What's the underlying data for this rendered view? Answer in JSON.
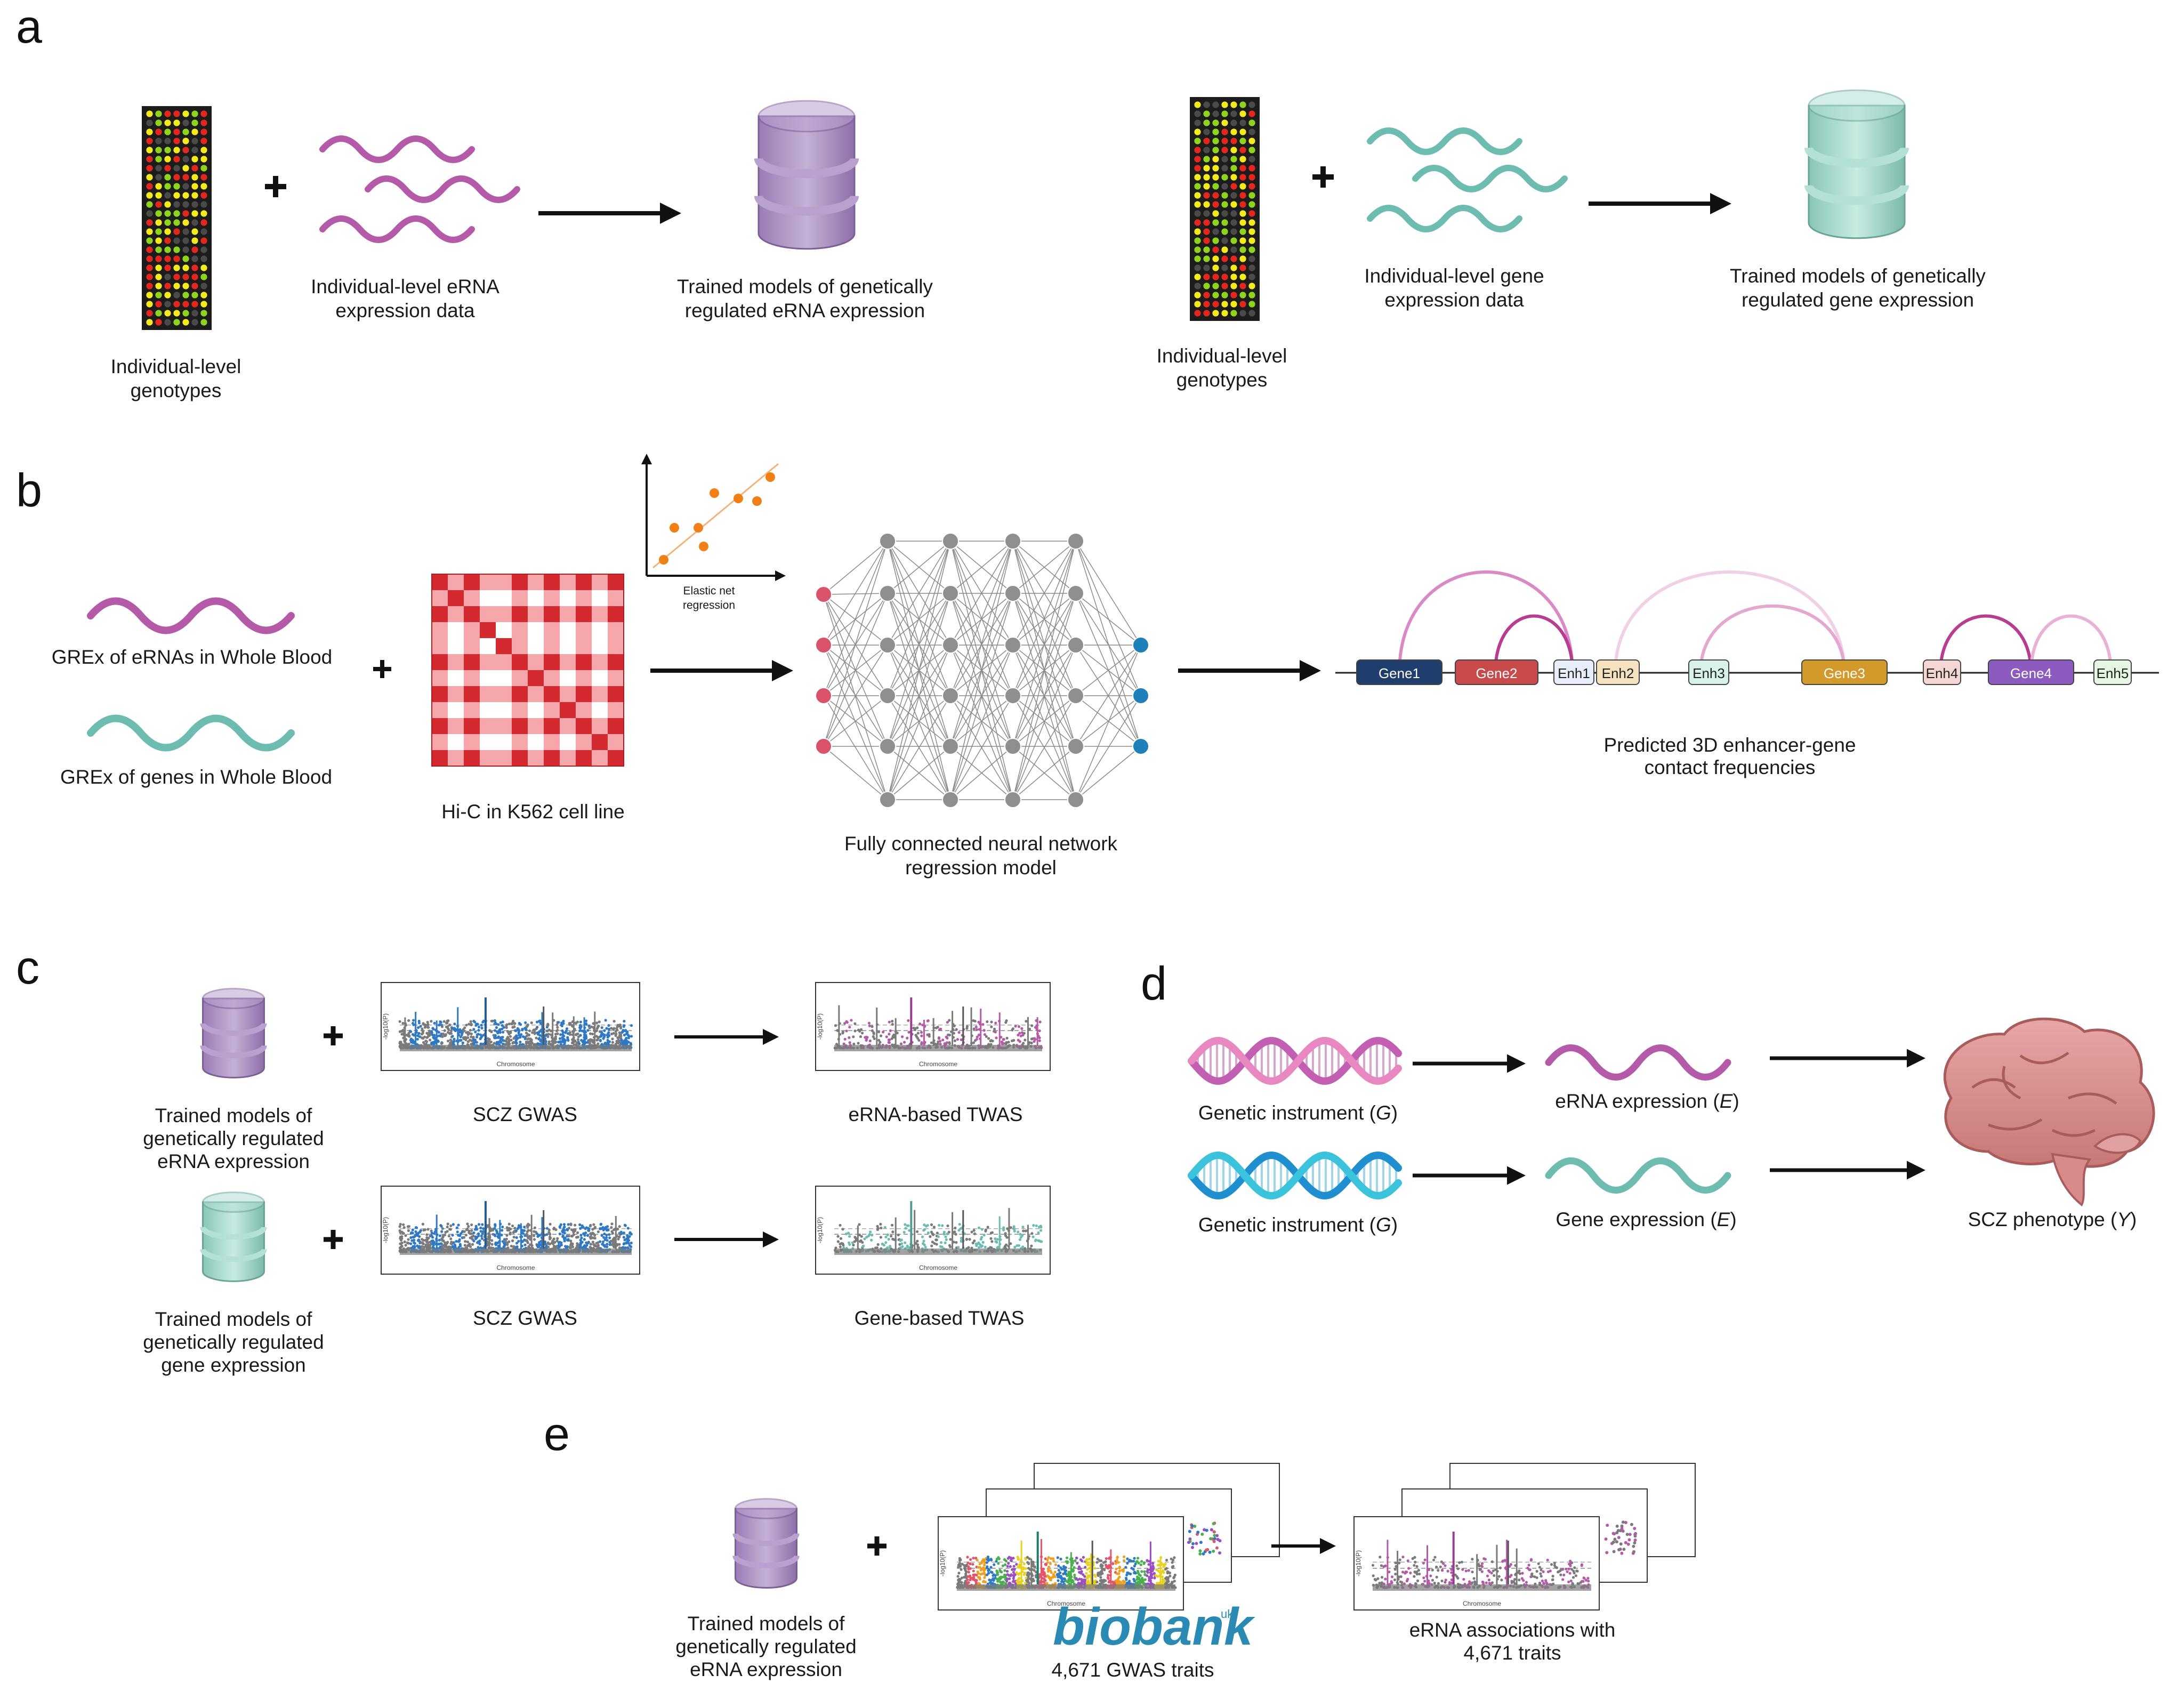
{
  "panels": {
    "a": "a",
    "b": "b",
    "c": "c",
    "d": "d",
    "e": "e"
  },
  "panel_a": {
    "genotypes_left": [
      "Individual-level",
      "genotypes"
    ],
    "erna_data": [
      "Individual-level eRNA",
      "expression data"
    ],
    "erna_models": [
      "Trained models of genetically",
      "regulated eRNA expression"
    ],
    "genotypes_right": [
      "Individual-level",
      "genotypes"
    ],
    "gene_data": [
      "Individual-level gene",
      "expression data"
    ],
    "gene_models": [
      "Trained models of genetically",
      "regulated gene expression"
    ]
  },
  "panel_b": {
    "grex_erna": "GREx of eRNAs in Whole Blood",
    "grex_gene": "GREx of genes in Whole Blood",
    "hic": "Hi-C in K562 cell line",
    "elastic": [
      "Elastic net",
      "regression"
    ],
    "nn": [
      "Fully connected neural network",
      "regression model"
    ],
    "contacts": [
      "Predicted 3D enhancer-gene",
      "contact frequencies"
    ],
    "elements": [
      "Gene1",
      "Gene2",
      "Enh1",
      "Enh2",
      "Enh3",
      "Gene3",
      "Enh4",
      "Gene4",
      "Enh5"
    ]
  },
  "panel_c": {
    "erna_models": [
      "Trained models of",
      "genetically regulated",
      "eRNA expression"
    ],
    "gene_models": [
      "Trained models of",
      "genetically regulated",
      "gene expression"
    ],
    "gwas_top": "SCZ GWAS",
    "gwas_bottom": "SCZ GWAS",
    "erna_twas": "eRNA-based TWAS",
    "gene_twas": "Gene-based TWAS",
    "xaxis": "Chromosome",
    "yaxis": "-log10(P)"
  },
  "panel_d": {
    "instrument_top": [
      "Genetic instrument (",
      "G",
      ")"
    ],
    "instrument_bottom": [
      "Genetic instrument (",
      "G",
      ")"
    ],
    "erna_expr": [
      "eRNA expression (",
      "E",
      ")"
    ],
    "gene_expr": [
      "Gene expression (",
      "E",
      ")"
    ],
    "phenotype": [
      "SCZ phenotype (",
      "Y",
      ")"
    ]
  },
  "panel_e": {
    "models": [
      "Trained models of",
      "genetically regulated",
      "eRNA expression"
    ],
    "biobank": "biobank",
    "biobank_uk": "uk",
    "gwas_traits": "4,671 GWAS traits",
    "assoc": [
      "eRNA associations with",
      "4,671 traits"
    ]
  },
  "colors": {
    "erna": "#b45aa8",
    "gene": "#6dbcb0",
    "db_purple": "#a98dc0",
    "db_teal": "#9fd3c7",
    "hic_red": "#d42a2f",
    "hic_pink": "#f5a7ab",
    "input_node": "#d9536b",
    "hidden_node": "#8f8f8f",
    "output_node": "#1f7fb8"
  }
}
